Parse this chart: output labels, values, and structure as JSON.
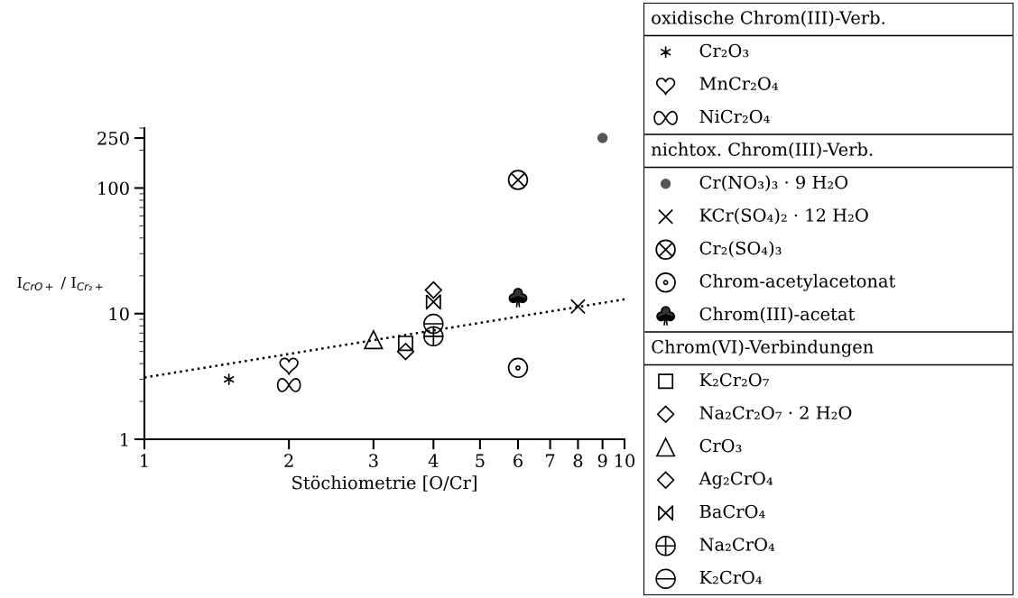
{
  "chart_data": {
    "type": "scatter",
    "xlabel": "Stöchiometrie [O/Cr]",
    "ylabel": "I$_{CrO+}$ / I$_{Cr₂+}$",
    "log": "xy",
    "xlim": [
      1,
      10
    ],
    "ylim": [
      1,
      300
    ],
    "xticks": [
      1,
      2,
      3,
      4,
      5,
      6,
      7,
      8,
      9,
      10
    ],
    "yticks": [
      1,
      10,
      100,
      250
    ],
    "grid": false,
    "legend": "right",
    "annotations": [
      "oxidische Chrom(III)-Verb.",
      "nichtox. Chrom(III)-Verb.",
      "Chrom(VI)-Verbindungen"
    ],
    "series": [
      {
        "name": "Cr₂O₃",
        "color": "#000000",
        "x": [
          1.5
        ],
        "values": [
          3.0
        ]
      },
      {
        "name": "MnCr₂O₄",
        "color": "#000000",
        "x": [
          2
        ],
        "values": [
          3.9
        ]
      },
      {
        "name": "NiCr₂O₄",
        "color": "#000000",
        "x": [
          2
        ],
        "values": [
          2.7
        ]
      },
      {
        "name": "Cr(NO₃)₃ · 9 H₂O",
        "color": "#555555",
        "marker": "circle",
        "x": [
          9
        ],
        "values": [
          250
        ]
      },
      {
        "name": "KCr(SO₄)₂ · 12 H₂O",
        "color": "#000000",
        "marker": "cross",
        "x": [
          8
        ],
        "values": [
          11.4
        ]
      },
      {
        "name": "Cr₂(SO₄)₃",
        "color": "#000000",
        "x": [
          6
        ],
        "values": [
          116
        ]
      },
      {
        "name": "Chrom-acetylacetonat",
        "color": "#000000",
        "x": [
          6
        ],
        "values": [
          3.7
        ]
      },
      {
        "name": "Chrom(III)-acetat",
        "color": "#000000",
        "x": [
          6
        ],
        "values": [
          13.5
        ]
      },
      {
        "name": "K₂Cr₂O₇",
        "color": "#000000",
        "marker": "square",
        "x": [
          3.5
        ],
        "values": [
          5.8
        ]
      },
      {
        "name": "Na₂Cr₂O₇ · 2 H₂O",
        "color": "#000000",
        "marker": "diamond",
        "x": [
          3.5
        ],
        "values": [
          5.0
        ]
      },
      {
        "name": "CrO₃",
        "color": "#000000",
        "marker": "triangle",
        "x": [
          3
        ],
        "values": [
          6.2
        ]
      },
      {
        "name": "Ag₂CrO₄",
        "color": "#000000",
        "marker": "diamond",
        "x": [
          4
        ],
        "values": [
          15.4
        ]
      },
      {
        "name": "BaCrO₄",
        "color": "#000000",
        "x": [
          4
        ],
        "values": [
          12.4
        ]
      },
      {
        "name": "Na₂CrO₄",
        "color": "#000000",
        "x": [
          4
        ],
        "values": [
          6.6
        ]
      },
      {
        "name": "K₂CrO₄",
        "color": "#000000",
        "x": [
          4
        ],
        "values": [
          8.3
        ]
      },
      {
        "type": "line",
        "color": "#000000",
        "line_style": "dotted",
        "marker": "none",
        "x": [
          1,
          10
        ],
        "values": [
          3.1,
          13.0
        ]
      }
    ]
  }
}
